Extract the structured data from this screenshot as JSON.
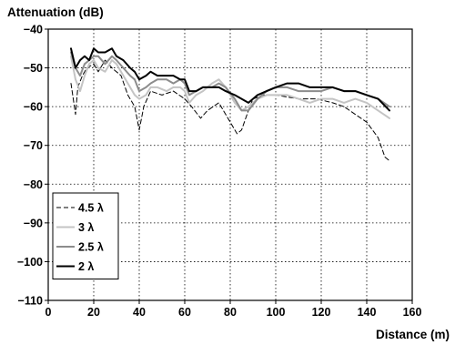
{
  "chart_data": {
    "type": "line",
    "title": "",
    "ylabel": "Attenuation (dB)",
    "xlabel": "Distance (m)",
    "xlim": [
      0,
      160
    ],
    "ylim": [
      -110,
      -40
    ],
    "xticks": [
      0,
      20,
      40,
      60,
      80,
      100,
      120,
      140,
      160
    ],
    "yticks": [
      -40,
      -50,
      -60,
      -70,
      -80,
      -90,
      -100,
      -110
    ],
    "grid": true,
    "legend_position": "bottom-left",
    "series": [
      {
        "name": "4.5 λ",
        "color": "#000000",
        "style": "dashed",
        "width": 1,
        "x": [
          10,
          11,
          12,
          13,
          15,
          17,
          20,
          22,
          25,
          28,
          32,
          35,
          38,
          40,
          42,
          45,
          50,
          55,
          60,
          63,
          67,
          70,
          75,
          80,
          83,
          85,
          88,
          90,
          95,
          100,
          110,
          118,
          125,
          130,
          135,
          140,
          145,
          148,
          150
        ],
        "y": [
          -54,
          -58,
          -62,
          -55,
          -52,
          -50,
          -49,
          -51,
          -48,
          -50,
          -52,
          -57,
          -60,
          -66,
          -60,
          -56,
          -57,
          -56,
          -58,
          -60,
          -63,
          -61,
          -59,
          -64,
          -67,
          -66,
          -61,
          -58,
          -57,
          -57,
          -58,
          -58,
          -59,
          -60,
          -62,
          -64,
          -68,
          -73,
          -74
        ]
      },
      {
        "name": "3 λ",
        "color": "#c4c4c4",
        "style": "solid",
        "width": 2,
        "x": [
          10,
          12,
          14,
          16,
          18,
          20,
          22,
          25,
          28,
          30,
          33,
          36,
          38,
          40,
          43,
          45,
          48,
          52,
          55,
          58,
          60,
          62,
          65,
          68,
          72,
          75,
          78,
          82,
          85,
          88,
          92,
          96,
          100,
          105,
          110,
          115,
          120,
          125,
          130,
          135,
          140,
          145,
          150
        ],
        "y": [
          -47,
          -53,
          -56,
          -52,
          -49,
          -48,
          -50,
          -51,
          -48,
          -49,
          -52,
          -55,
          -57,
          -58,
          -57,
          -55,
          -55,
          -56,
          -55,
          -55,
          -56,
          -59,
          -57,
          -56,
          -54,
          -53,
          -55,
          -59,
          -61,
          -60,
          -58,
          -57,
          -57,
          -57,
          -58,
          -59,
          -58,
          -58,
          -59,
          -58,
          -59,
          -61,
          -63
        ]
      },
      {
        "name": "2.5 λ",
        "color": "#8c8c8c",
        "style": "solid",
        "width": 2,
        "x": [
          10,
          12,
          14,
          16,
          18,
          20,
          22,
          25,
          28,
          30,
          33,
          36,
          38,
          40,
          43,
          45,
          48,
          52,
          55,
          58,
          60,
          62,
          65,
          68,
          72,
          75,
          78,
          82,
          85,
          88,
          92,
          96,
          100,
          105,
          110,
          115,
          120,
          125,
          130,
          135,
          140,
          145,
          150
        ],
        "y": [
          -46,
          -50,
          -52,
          -49,
          -48,
          -47,
          -47,
          -49,
          -47,
          -48,
          -50,
          -52,
          -53,
          -56,
          -55,
          -54,
          -53,
          -53,
          -54,
          -53,
          -54,
          -57,
          -56,
          -55,
          -55,
          -54,
          -55,
          -58,
          -61,
          -61,
          -58,
          -56,
          -55,
          -55,
          -56,
          -56,
          -56,
          -55,
          -56,
          -56,
          -57,
          -58,
          -60
        ]
      },
      {
        "name": "2 λ",
        "color": "#000000",
        "style": "solid",
        "width": 2,
        "x": [
          10,
          12,
          14,
          16,
          18,
          20,
          22,
          25,
          28,
          30,
          33,
          36,
          38,
          40,
          43,
          45,
          48,
          52,
          55,
          58,
          60,
          62,
          65,
          68,
          72,
          75,
          78,
          82,
          85,
          88,
          92,
          96,
          100,
          105,
          110,
          115,
          120,
          125,
          130,
          135,
          140,
          145,
          150
        ],
        "y": [
          -45,
          -50,
          -48,
          -47,
          -48,
          -45,
          -46,
          -46,
          -45,
          -47,
          -48,
          -50,
          -51,
          -53,
          -52,
          -51,
          -52,
          -52,
          -52,
          -53,
          -53,
          -56,
          -56,
          -55,
          -55,
          -55,
          -56,
          -57,
          -58,
          -59,
          -57,
          -56,
          -55,
          -54,
          -54,
          -55,
          -55,
          -55,
          -56,
          -56,
          -57,
          -58,
          -61
        ]
      }
    ]
  }
}
